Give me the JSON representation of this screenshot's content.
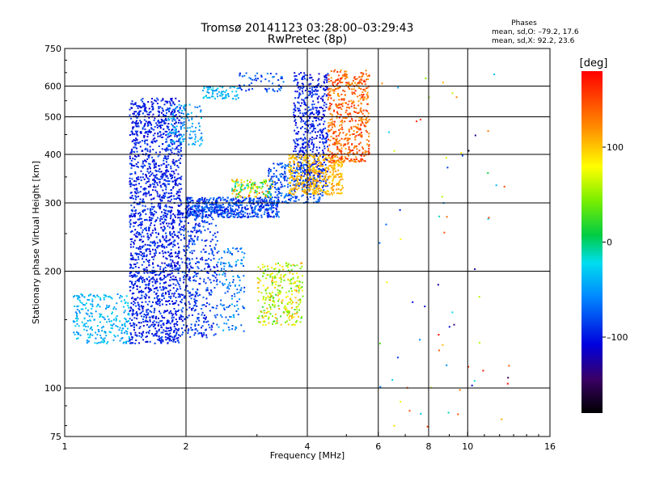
{
  "chart_data": {
    "type": "scatter",
    "title": "Tromsø 20141123 03:28:00–03:29:43",
    "subtitle": "RwPretec (8p)",
    "xlabel": "Frequency [MHz]",
    "ylabel": "Stationary phase Virtual Height [km]",
    "x_scale": "log",
    "y_scale": "log",
    "xlim": [
      1,
      16
    ],
    "ylim": [
      75,
      750
    ],
    "x_ticks": [
      1,
      2,
      4,
      6,
      8,
      10,
      16
    ],
    "x_tick_labels": [
      "1",
      "2",
      "4",
      "6",
      "8",
      "10",
      "16"
    ],
    "x_gridlines": [
      2,
      4,
      6,
      8,
      10
    ],
    "y_ticks": [
      75,
      100,
      200,
      300,
      400,
      500,
      600,
      750
    ],
    "y_tick_labels": [
      "75",
      "100",
      "200",
      "300",
      "400",
      "500",
      "600",
      "750"
    ],
    "y_gridlines": [
      100,
      200,
      300,
      400,
      500,
      600
    ],
    "grid": true,
    "phase_stats": {
      "heading": "Phases",
      "line_o": "mean, sd,O: –79.2, 17.6",
      "line_x": "mean, sd,X:  92.2, 23.6"
    },
    "colorbar": {
      "label": "[deg]",
      "range": [
        -180,
        180
      ],
      "ticks": [
        100,
        0,
        -100
      ],
      "tick_labels": [
        "100",
        "0",
        "–100"
      ],
      "colormap": "rainbow"
    },
    "point_groups": [
      {
        "f": [
          1.45,
          1.95
        ],
        "h": [
          130,
          560
        ],
        "phase": [
          -115,
          -80
        ],
        "density": 1800
      },
      {
        "f": [
          1.05,
          1.45
        ],
        "h": [
          130,
          175
        ],
        "phase": [
          -60,
          -20
        ],
        "density": 250
      },
      {
        "f": [
          1.95,
          2.4
        ],
        "h": [
          135,
          300
        ],
        "phase": [
          -110,
          -70
        ],
        "density": 400
      },
      {
        "f": [
          2.4,
          2.8
        ],
        "h": [
          140,
          230
        ],
        "phase": [
          -90,
          -40
        ],
        "density": 130
      },
      {
        "f": [
          2.0,
          3.4
        ],
        "h": [
          275,
          310
        ],
        "phase": [
          -110,
          -60
        ],
        "density": 550
      },
      {
        "f": [
          2.6,
          3.3
        ],
        "h": [
          310,
          345
        ],
        "phase": [
          -40,
          140
        ],
        "density": 140
      },
      {
        "f": [
          3.2,
          4.4
        ],
        "h": [
          300,
          380
        ],
        "phase": [
          -100,
          -60
        ],
        "density": 260
      },
      {
        "f": [
          3.7,
          4.5
        ],
        "h": [
          330,
          650
        ],
        "phase": [
          -115,
          -80
        ],
        "density": 500
      },
      {
        "f": [
          3.6,
          4.9
        ],
        "h": [
          315,
          400
        ],
        "phase": [
          90,
          120
        ],
        "density": 420
      },
      {
        "f": [
          4.5,
          5.7
        ],
        "h": [
          380,
          660
        ],
        "phase": [
          110,
          170
        ],
        "density": 520
      },
      {
        "f": [
          3.0,
          3.9
        ],
        "h": [
          145,
          210
        ],
        "phase": [
          20,
          115
        ],
        "density": 280
      },
      {
        "f": [
          2.2,
          2.7
        ],
        "h": [
          555,
          600
        ],
        "phase": [
          -60,
          -20
        ],
        "density": 70
      },
      {
        "f": [
          1.8,
          2.2
        ],
        "h": [
          420,
          540
        ],
        "phase": [
          -70,
          -30
        ],
        "density": 120
      },
      {
        "f": [
          2.7,
          3.5
        ],
        "h": [
          580,
          650
        ],
        "phase": [
          -100,
          -60
        ],
        "density": 60
      },
      {
        "f": [
          6.0,
          13.0
        ],
        "h": [
          78,
          650
        ],
        "phase": [
          -180,
          180
        ],
        "density": 70
      }
    ]
  }
}
